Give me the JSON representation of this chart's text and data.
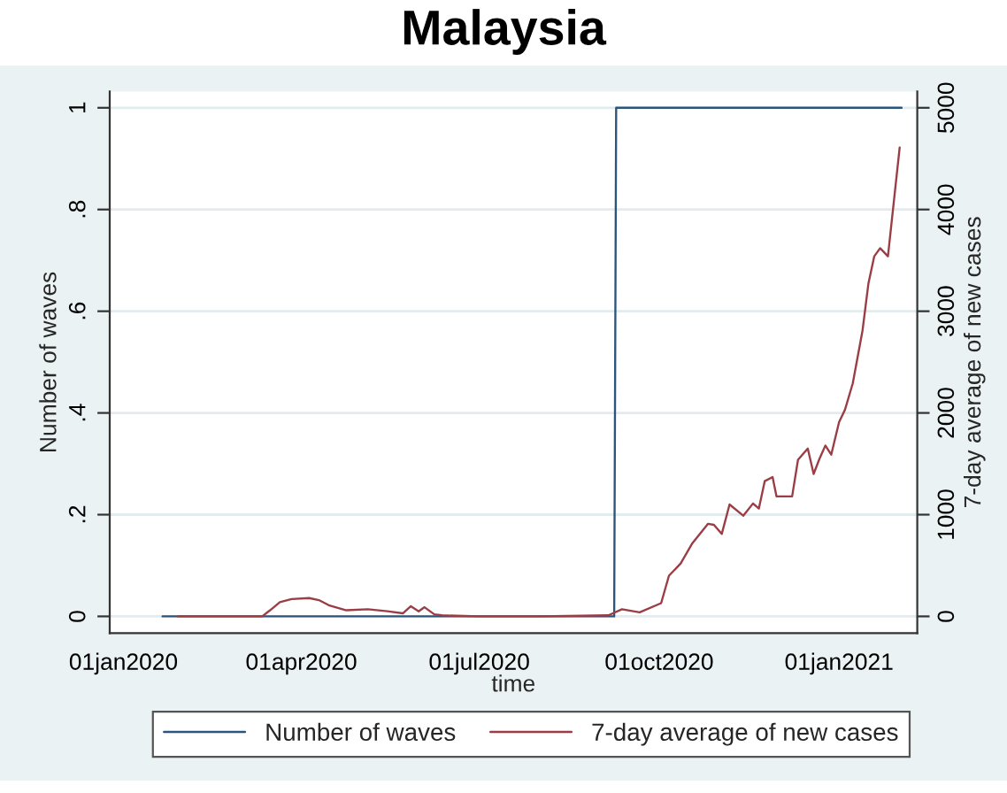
{
  "chart_data": {
    "type": "line",
    "title": "Malaysia",
    "xlabel": "time",
    "ylabel": "Number of waves",
    "y2label": "7-day average of new cases",
    "xlim": [
      "2019-12-25",
      "2021-02-10"
    ],
    "xticks": [
      {
        "value": "2020-01-01",
        "label": "01jan2020"
      },
      {
        "value": "2020-04-01",
        "label": "01apr2020"
      },
      {
        "value": "2020-07-01",
        "label": "01jul2020"
      },
      {
        "value": "2020-10-01",
        "label": "01oct2020"
      },
      {
        "value": "2021-01-01",
        "label": "01jan2021"
      }
    ],
    "ylim": [
      -0.033,
      1.032
    ],
    "yticks": [
      0,
      {
        "value": 0.2,
        "label": ".2"
      },
      {
        "value": 0.4,
        "label": ".4"
      },
      {
        "value": 0.6,
        "label": ".6"
      },
      {
        "value": 0.8,
        "label": ".8"
      },
      1
    ],
    "y2lim": [
      -165,
      5160
    ],
    "y2ticks": [
      0,
      1000,
      2000,
      3000,
      4000,
      5000
    ],
    "grid": "y",
    "legend": "bottom",
    "series": [
      {
        "name": "Number of waves",
        "color": "#2b557c",
        "x": [
          "2020-01-21",
          "2020-09-08",
          "2020-09-09",
          "2021-02-02"
        ],
        "values": [
          0,
          0,
          1,
          1
        ]
      },
      {
        "name": "7-day average of new cases",
        "axis": "y2",
        "color": "#9b3d45",
        "x": [
          "2020-01-29",
          "2020-03-12",
          "2020-03-16",
          "2020-03-21",
          "2020-03-27",
          "2020-04-05",
          "2020-04-10",
          "2020-04-15",
          "2020-04-24",
          "2020-05-05",
          "2020-05-15",
          "2020-05-23",
          "2020-05-27",
          "2020-05-31",
          "2020-06-03",
          "2020-06-08",
          "2020-06-12",
          "2020-07-01",
          "2020-08-01",
          "2020-09-05",
          "2020-09-12",
          "2020-09-21",
          "2020-10-02",
          "2020-10-06",
          "2020-10-12",
          "2020-10-18",
          "2020-10-26",
          "2020-10-29",
          "2020-11-02",
          "2020-11-06",
          "2020-11-13",
          "2020-11-18",
          "2020-11-21",
          "2020-11-24",
          "2020-11-28",
          "2020-11-30",
          "2020-12-08",
          "2020-12-11",
          "2020-12-16",
          "2020-12-19",
          "2020-12-22",
          "2020-12-25",
          "2020-12-28",
          "2021-01-01",
          "2021-01-04",
          "2021-01-08",
          "2021-01-13",
          "2021-01-16",
          "2021-01-19",
          "2021-01-22",
          "2021-01-26",
          "2021-02-01"
        ],
        "values": [
          0,
          0,
          60,
          140,
          170,
          180,
          160,
          110,
          60,
          70,
          50,
          30,
          100,
          50,
          90,
          20,
          10,
          0,
          0,
          10,
          70,
          40,
          130,
          400,
          520,
          720,
          910,
          900,
          810,
          1100,
          990,
          1110,
          1060,
          1330,
          1370,
          1180,
          1180,
          1540,
          1650,
          1400,
          1550,
          1680,
          1590,
          1910,
          2030,
          2290,
          2810,
          3270,
          3540,
          3620,
          3540,
          4610
        ]
      }
    ]
  }
}
